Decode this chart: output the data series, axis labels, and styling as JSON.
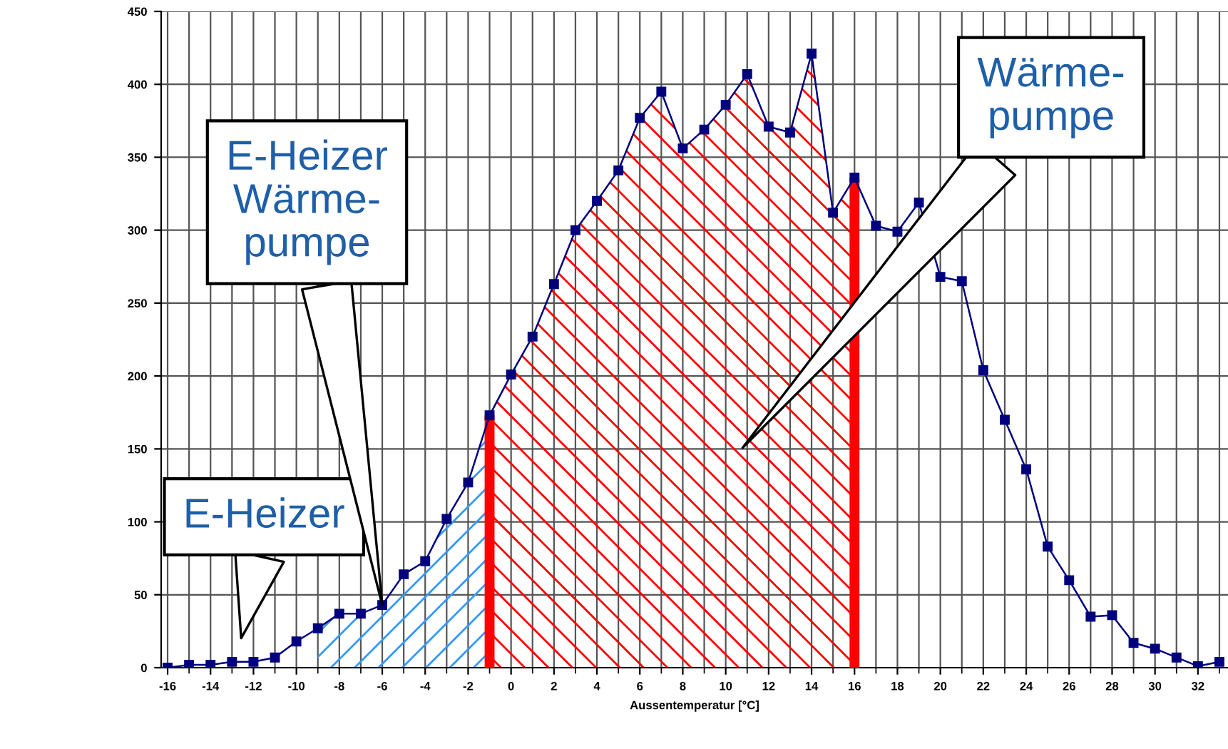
{
  "chart_data": {
    "type": "line",
    "xlabel": "Aussentemperatur [°C]",
    "x": [
      -16,
      -15,
      -14,
      -13,
      -12,
      -11,
      -10,
      -9,
      -8,
      -7,
      -6,
      -5,
      -4,
      -3,
      -2,
      -1,
      0,
      1,
      2,
      3,
      4,
      5,
      6,
      7,
      8,
      9,
      10,
      11,
      12,
      13,
      14,
      15,
      16,
      17,
      18,
      19,
      20,
      21,
      22,
      23,
      24,
      25,
      26,
      27,
      28,
      29,
      30,
      31,
      32,
      33
    ],
    "series": [
      {
        "color": "#00007f",
        "marker": "square",
        "values": [
          0,
          2,
          2,
          4,
          4,
          7,
          18,
          27,
          37,
          37,
          43,
          64,
          73,
          102,
          127,
          173,
          201,
          227,
          263,
          300,
          320,
          341,
          377,
          395,
          356,
          369,
          386,
          407,
          371,
          367,
          421,
          312,
          336,
          303,
          299,
          319,
          268,
          265,
          204,
          170,
          136,
          83,
          60,
          35,
          36,
          17,
          13,
          7,
          1,
          4
        ]
      },
      {
        "type": "area",
        "color": "#3399ff",
        "x": [
          -9,
          -8,
          -7,
          -6,
          -5,
          -4,
          -3,
          -2,
          -1
        ],
        "values": [
          27,
          37,
          37,
          43,
          64,
          73,
          102,
          127,
          173
        ]
      },
      {
        "type": "area",
        "color": "#ff0000",
        "x": [
          -1,
          0,
          1,
          2,
          3,
          4,
          5,
          6,
          7,
          8,
          9,
          10,
          11,
          12,
          13,
          14,
          15,
          16
        ],
        "values": [
          173,
          201,
          227,
          263,
          300,
          320,
          341,
          377,
          395,
          356,
          369,
          386,
          407,
          371,
          367,
          421,
          312,
          336
        ]
      }
    ],
    "xlim": [
      -16.3,
      33.4
    ],
    "ylim": [
      0,
      450
    ],
    "xticks": [
      -16,
      -14,
      -12,
      -10,
      -8,
      -6,
      -4,
      -2,
      0,
      2,
      4,
      6,
      8,
      10,
      12,
      14,
      16,
      18,
      20,
      22,
      24,
      26,
      28,
      30,
      32
    ],
    "yticks": [
      0,
      50,
      100,
      150,
      200,
      250,
      300,
      350,
      400,
      450
    ],
    "grid": true,
    "ref_lines": [
      {
        "axis": "x",
        "value": -1,
        "color": "#ff0000"
      },
      {
        "axis": "x",
        "value": 16,
        "color": "#ff0000"
      }
    ],
    "annotations": [
      "E-Heizer",
      {
        "text": "E-Heizer\nWärme-\npumpe",
        "x": -6,
        "y": 43
      },
      "Wärme-\npumpe"
    ]
  }
}
